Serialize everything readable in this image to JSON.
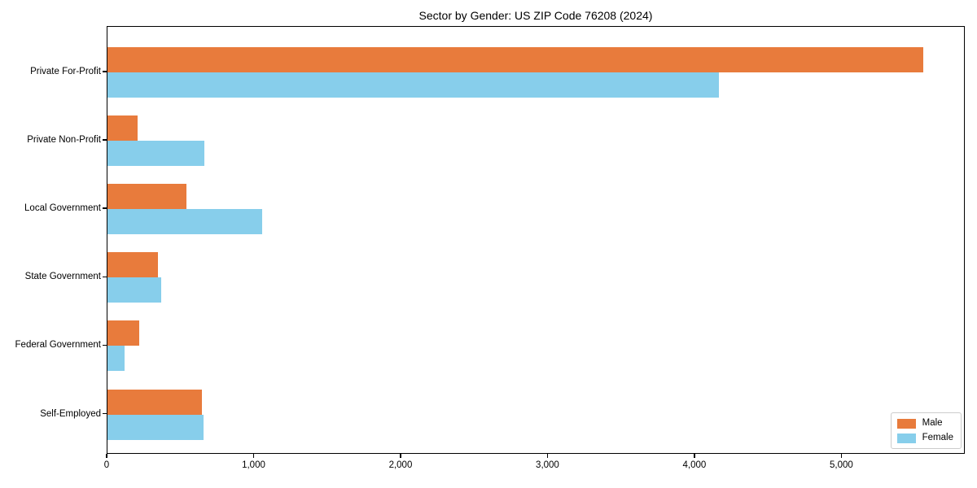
{
  "title": "Sector by Gender: US ZIP Code 76208 (2024)",
  "chart_data": {
    "type": "bar",
    "orientation": "horizontal",
    "title": "Sector by Gender: US ZIP Code 76208 (2024)",
    "categories": [
      "Private For-Profit",
      "Private Non-Profit",
      "Local Government",
      "State Government",
      "Federal Government",
      "Self-Employed"
    ],
    "series": [
      {
        "name": "Male",
        "color": "#E87B3C",
        "values": [
          5560,
          205,
          540,
          345,
          215,
          645
        ]
      },
      {
        "name": "Female",
        "color": "#87CEEB",
        "values": [
          4170,
          660,
          1055,
          365,
          115,
          655
        ]
      }
    ],
    "xlabel": "",
    "ylabel": "",
    "xlim": [
      0,
      5840
    ],
    "x_ticks": [
      0,
      1000,
      2000,
      3000,
      4000,
      5000
    ],
    "x_tick_labels": [
      "0",
      "1,000",
      "2,000",
      "3,000",
      "4,000",
      "5,000"
    ],
    "grid": false,
    "legend": {
      "position": "lower right",
      "entries": [
        "Male",
        "Female"
      ]
    }
  }
}
